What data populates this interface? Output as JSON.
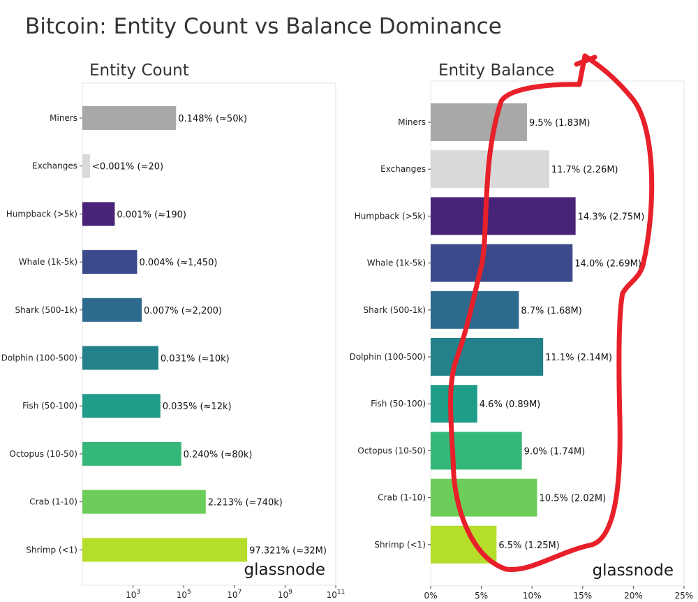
{
  "title": "Bitcoin: Entity Count vs Balance Dominance",
  "watermark": "glassnode",
  "colors": {
    "Miners": "#a8a8a8",
    "Exchanges": "#d9d9d9",
    "Humpback (>5k)": "#472478",
    "Whale (1k-5k)": "#3b4a8b",
    "Shark (500-1k)": "#2e6a8e",
    "Dolphin (100-500)": "#23818b",
    "Fish (50-100)": "#1f9d88",
    "Octopus (10-50)": "#35b779",
    "Crab (1-10)": "#6ccd5a",
    "Shrimp (<1)": "#b5de2b",
    "annotation": "#e8202a"
  },
  "chart_data": [
    {
      "type": "bar",
      "orientation": "horizontal",
      "title": "Entity Count",
      "xscale": "log",
      "xlim": [
        10,
        100000000000
      ],
      "x_ticks": [
        "10^3",
        "10^5",
        "10^7",
        "10^9",
        "10^11"
      ],
      "x_tick_values": [
        1000,
        100000,
        10000000,
        1000000000,
        100000000000
      ],
      "categories": [
        "Miners",
        "Exchanges",
        "Humpback (>5k)",
        "Whale (1k-5k)",
        "Shark (500-1k)",
        "Dolphin (100-500)",
        "Fish (50-100)",
        "Octopus (10-50)",
        "Crab (1-10)",
        "Shrimp (<1)"
      ],
      "values": [
        50000,
        20,
        190,
        1450,
        2200,
        10000,
        12000,
        80000,
        740000,
        32000000
      ],
      "labels": [
        "0.148% (≈50k)",
        "<0.001% (≈20)",
        "0.001% (≈190)",
        "0.004% (≈1,450)",
        "0.007% (≈2,200)",
        "0.031% (≈10k)",
        "0.035% (≈12k)",
        "0.240% (≈80k)",
        "2.213% (≈740k)",
        "97.321% (≈32M)"
      ],
      "grid": false
    },
    {
      "type": "bar",
      "orientation": "horizontal",
      "title": "Entity Balance",
      "xscale": "linear",
      "xlim": [
        0,
        25
      ],
      "x_ticks": [
        "0%",
        "5%",
        "10%",
        "15%",
        "20%",
        "25%"
      ],
      "x_tick_values": [
        0,
        5,
        10,
        15,
        20,
        25
      ],
      "categories": [
        "Miners",
        "Exchanges",
        "Humpback (>5k)",
        "Whale (1k-5k)",
        "Shark (500-1k)",
        "Dolphin (100-500)",
        "Fish (50-100)",
        "Octopus (10-50)",
        "Crab (1-10)",
        "Shrimp (<1)"
      ],
      "values": [
        9.5,
        11.7,
        14.3,
        14.0,
        8.7,
        11.1,
        4.6,
        9.0,
        10.5,
        6.5
      ],
      "labels": [
        "9.5% (1.83M)",
        "11.7% (2.26M)",
        "14.3% (2.75M)",
        "14.0% (2.69M)",
        "8.7% (1.68M)",
        "11.1% (2.14M)",
        "4.6% (0.89M)",
        "9.0% (1.74M)",
        "10.5% (2.02M)",
        "6.5% (1.25M)"
      ],
      "grid": false
    }
  ]
}
